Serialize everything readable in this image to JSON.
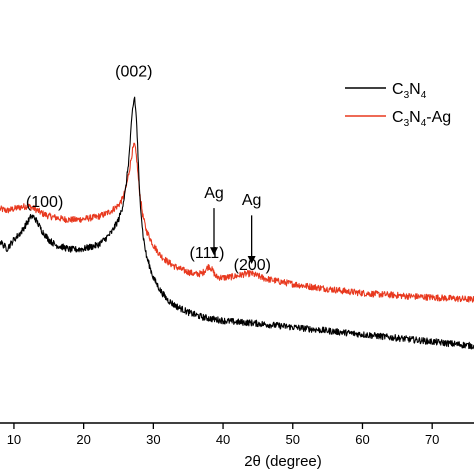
{
  "chart_data": {
    "type": "line",
    "xlabel": "2θ (degree)",
    "xlim": [
      8,
      76
    ],
    "ylim": [
      0,
      1
    ],
    "y_ticks_shown": false,
    "grid": false,
    "x_ticks": [
      10,
      20,
      30,
      40,
      50,
      60,
      70
    ],
    "x_tick_labels": [
      "10",
      "20",
      "30",
      "40",
      "50",
      "60",
      "70"
    ],
    "colors": {
      "C3N4": "#000000",
      "C3N4-Ag": "#e8391f"
    },
    "legend": {
      "placement": "top-right",
      "entries": [
        {
          "key": "C3N4",
          "base": "C",
          "sub1": "3",
          "mid": "N",
          "sub2": "4",
          "suffix": ""
        },
        {
          "key": "C3N4-Ag",
          "base": "C",
          "sub1": "3",
          "mid": "N",
          "sub2": "4",
          "suffix": "-Ag"
        }
      ]
    },
    "series": [
      {
        "key": "C3N4",
        "points": [
          [
            8,
            0.5
          ],
          [
            9,
            0.48
          ],
          [
            10,
            0.505
          ],
          [
            11,
            0.525
          ],
          [
            12,
            0.555
          ],
          [
            12.5,
            0.57
          ],
          [
            13,
            0.565
          ],
          [
            14,
            0.53
          ],
          [
            15,
            0.505
          ],
          [
            16,
            0.49
          ],
          [
            17,
            0.485
          ],
          [
            18,
            0.478
          ],
          [
            19,
            0.478
          ],
          [
            20,
            0.48
          ],
          [
            21,
            0.485
          ],
          [
            22,
            0.49
          ],
          [
            23,
            0.505
          ],
          [
            24,
            0.525
          ],
          [
            25,
            0.56
          ],
          [
            25.5,
            0.59
          ],
          [
            26,
            0.64
          ],
          [
            26.5,
            0.73
          ],
          [
            27,
            0.86
          ],
          [
            27.3,
            0.9
          ],
          [
            27.6,
            0.83
          ],
          [
            28,
            0.64
          ],
          [
            28.5,
            0.52
          ],
          [
            29,
            0.46
          ],
          [
            30,
            0.4
          ],
          [
            31,
            0.365
          ],
          [
            32,
            0.34
          ],
          [
            33,
            0.325
          ],
          [
            34,
            0.315
          ],
          [
            35,
            0.305
          ],
          [
            36,
            0.298
          ],
          [
            37,
            0.292
          ],
          [
            38,
            0.288
          ],
          [
            39,
            0.285
          ],
          [
            40,
            0.282
          ],
          [
            42,
            0.278
          ],
          [
            44,
            0.276
          ],
          [
            46,
            0.272
          ],
          [
            48,
            0.268
          ],
          [
            50,
            0.264
          ],
          [
            52,
            0.26
          ],
          [
            54,
            0.256
          ],
          [
            56,
            0.252
          ],
          [
            58,
            0.248
          ],
          [
            60,
            0.244
          ],
          [
            62,
            0.24
          ],
          [
            64,
            0.236
          ],
          [
            66,
            0.232
          ],
          [
            68,
            0.228
          ],
          [
            70,
            0.224
          ],
          [
            72,
            0.22
          ],
          [
            74,
            0.216
          ],
          [
            76,
            0.212
          ]
        ]
      },
      {
        "key": "C3N4-Ag",
        "points": [
          [
            8,
            0.59
          ],
          [
            9,
            0.585
          ],
          [
            10,
            0.59
          ],
          [
            11,
            0.595
          ],
          [
            12,
            0.598
          ],
          [
            13,
            0.59
          ],
          [
            14,
            0.578
          ],
          [
            15,
            0.57
          ],
          [
            16,
            0.566
          ],
          [
            17,
            0.562
          ],
          [
            18,
            0.56
          ],
          [
            19,
            0.56
          ],
          [
            20,
            0.562
          ],
          [
            21,
            0.565
          ],
          [
            22,
            0.568
          ],
          [
            23,
            0.575
          ],
          [
            24,
            0.585
          ],
          [
            25,
            0.6
          ],
          [
            25.5,
            0.615
          ],
          [
            26,
            0.64
          ],
          [
            26.5,
            0.69
          ],
          [
            27,
            0.75
          ],
          [
            27.3,
            0.768
          ],
          [
            27.6,
            0.73
          ],
          [
            28,
            0.64
          ],
          [
            28.5,
            0.57
          ],
          [
            29,
            0.53
          ],
          [
            30,
            0.49
          ],
          [
            31,
            0.462
          ],
          [
            32,
            0.445
          ],
          [
            33,
            0.432
          ],
          [
            34,
            0.423
          ],
          [
            35,
            0.416
          ],
          [
            36,
            0.41
          ],
          [
            37,
            0.412
          ],
          [
            38,
            0.433
          ],
          [
            38.5,
            0.42
          ],
          [
            39,
            0.403
          ],
          [
            40,
            0.4
          ],
          [
            41,
            0.402
          ],
          [
            42,
            0.405
          ],
          [
            43,
            0.41
          ],
          [
            44,
            0.412
          ],
          [
            45,
            0.405
          ],
          [
            46,
            0.398
          ],
          [
            48,
            0.39
          ],
          [
            50,
            0.383
          ],
          [
            52,
            0.377
          ],
          [
            54,
            0.372
          ],
          [
            56,
            0.367
          ],
          [
            58,
            0.362
          ],
          [
            60,
            0.358
          ],
          [
            62,
            0.355
          ],
          [
            64,
            0.353
          ],
          [
            66,
            0.35
          ],
          [
            68,
            0.348
          ],
          [
            70,
            0.346
          ],
          [
            72,
            0.344
          ],
          [
            74,
            0.342
          ],
          [
            76,
            0.34
          ]
        ]
      }
    ],
    "peak_labels": [
      {
        "text": "(100)",
        "x": 14.4,
        "y": 0.595
      },
      {
        "text": "(002)",
        "x": 27.2,
        "y": 0.955
      },
      {
        "text": "(111)",
        "x": 37.7,
        "y": 0.455
      },
      {
        "text": "(200)",
        "x": 44.2,
        "y": 0.422
      }
    ],
    "arrow_annotations": [
      {
        "text": "Ag",
        "x": 38.7,
        "text_y": 0.62,
        "y_start": 0.592,
        "y_end": 0.462
      },
      {
        "text": "Ag",
        "x": 44.1,
        "text_y": 0.6,
        "y_start": 0.572,
        "y_end": 0.438
      }
    ]
  }
}
